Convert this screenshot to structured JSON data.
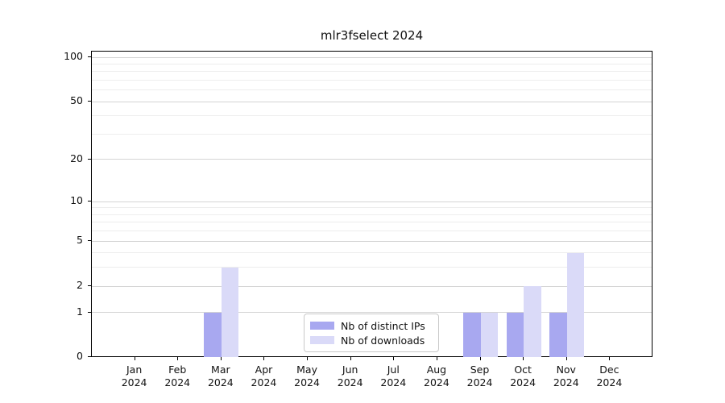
{
  "chart_data": {
    "type": "bar",
    "title": "mlr3fselect 2024",
    "categories": [
      "Jan",
      "Feb",
      "Mar",
      "Apr",
      "May",
      "Jun",
      "Jul",
      "Aug",
      "Sep",
      "Oct",
      "Nov",
      "Dec"
    ],
    "category_sublabel": "2024",
    "series": [
      {
        "name": "Nb of distinct IPs",
        "color": "#a8a8f0",
        "values": [
          0,
          0,
          1,
          0,
          0,
          0,
          0,
          0,
          1,
          1,
          1,
          0
        ]
      },
      {
        "name": "Nb of downloads",
        "color": "#dadaf8",
        "values": [
          0,
          0,
          3,
          0,
          0,
          0,
          0,
          0,
          1,
          2,
          4,
          0
        ]
      }
    ],
    "yscale": "log1p",
    "ylim": [
      0,
      100
    ],
    "yticks": [
      0,
      1,
      2,
      5,
      10,
      20,
      50,
      100
    ],
    "minor_gridlines": [
      3,
      4,
      6,
      7,
      8,
      9,
      30,
      40,
      60,
      70,
      80,
      90
    ],
    "grid": true,
    "legend_position": "bottom-center",
    "colors": {
      "major_grid": "#d4d4d4",
      "minor_grid": "#ededed",
      "axis": "#000000",
      "text": "#111111",
      "background": "#ffffff"
    }
  }
}
